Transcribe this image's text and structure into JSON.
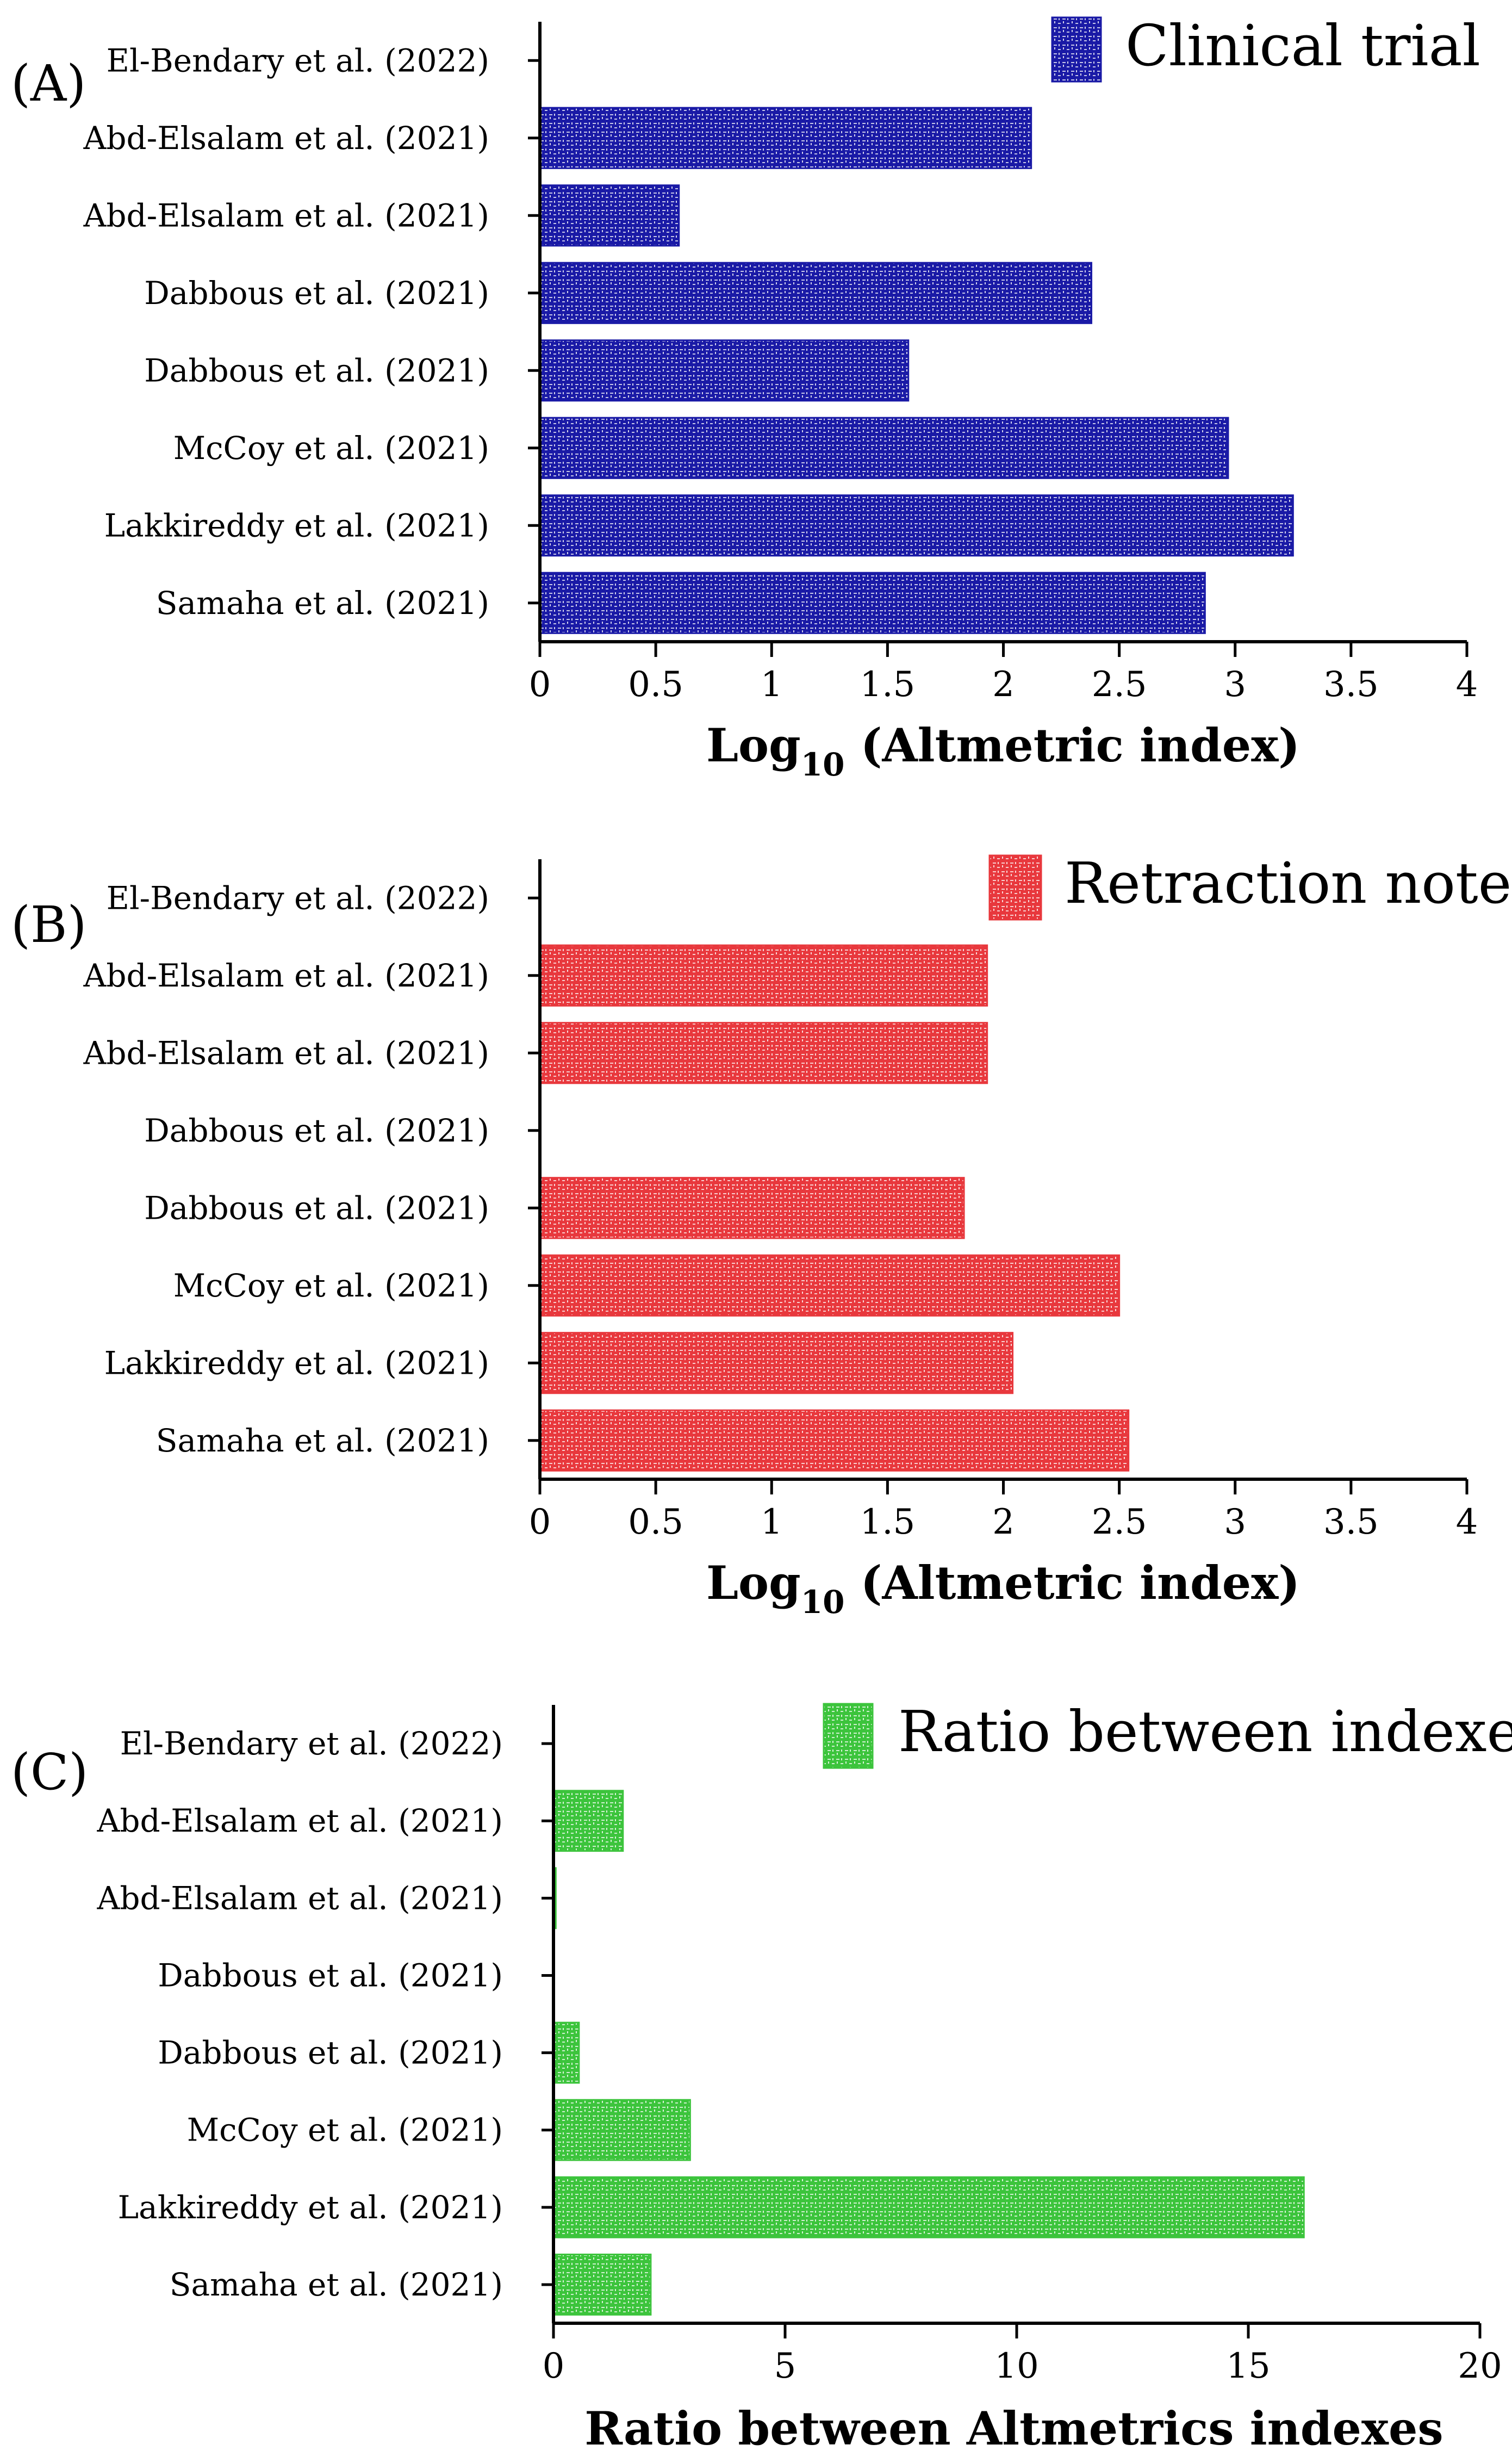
{
  "chart_data": [
    {
      "panel_label": "(A)",
      "type": "bar",
      "orientation": "horizontal",
      "legend": "Clinical trial",
      "legend_position": "top-right",
      "color": "#1a1aa6",
      "categories": [
        "El-Bendary et al. (2022)",
        "Abd-Elsalam et al. (2021)",
        "Abd-Elsalam et al. (2021)",
        "Dabbous et al. (2021)",
        "Dabbous et al. (2021)",
        "McCoy et al. (2021)",
        "Lakkireddy et al. (2021)",
        "Samaha et al. (2021)"
      ],
      "values": [
        0,
        2.12,
        0.6,
        2.38,
        1.59,
        2.97,
        3.25,
        2.87
      ],
      "xlabel_main": "Log",
      "xlabel_sub": "10",
      "xlabel_rest": " (Altmetric index)",
      "xlim": [
        0,
        4
      ],
      "xticks": [
        0,
        0.5,
        1,
        1.5,
        2,
        2.5,
        3,
        3.5,
        4
      ],
      "xtick_labels": [
        "0",
        "0.5",
        "1",
        "1.5",
        "2",
        "2.5",
        "3",
        "3.5",
        "4"
      ]
    },
    {
      "panel_label": "(B)",
      "type": "bar",
      "orientation": "horizontal",
      "legend": "Retraction note",
      "legend_position": "top-right",
      "color": "#e8383d",
      "categories": [
        "El-Bendary et al. (2022)",
        "Abd-Elsalam et al. (2021)",
        "Abd-Elsalam et al. (2021)",
        "Dabbous et al. (2021)",
        "Dabbous et al. (2021)",
        "McCoy et al. (2021)",
        "Lakkireddy et al. (2021)",
        "Samaha et al. (2021)"
      ],
      "values": [
        0,
        1.93,
        1.93,
        0,
        1.83,
        2.5,
        2.04,
        2.54
      ],
      "xlabel_main": "Log",
      "xlabel_sub": "10",
      "xlabel_rest": " (Altmetric index)",
      "xlim": [
        0,
        4
      ],
      "xticks": [
        0,
        0.5,
        1,
        1.5,
        2,
        2.5,
        3,
        3.5,
        4
      ],
      "xtick_labels": [
        "0",
        "0.5",
        "1",
        "1.5",
        "2",
        "2.5",
        "3",
        "3.5",
        "4"
      ]
    },
    {
      "panel_label": "(C)",
      "type": "bar",
      "orientation": "horizontal",
      "legend": "Ratio between indexes",
      "legend_position": "top-right",
      "color": "#3cc43c",
      "categories": [
        "El-Bendary et al. (2022)",
        "Abd-Elsalam et al. (2021)",
        "Abd-Elsalam et al. (2021)",
        "Dabbous et al. (2021)",
        "Dabbous et al. (2021)",
        "McCoy et al. (2021)",
        "Lakkireddy et al. (2021)",
        "Samaha et al. (2021)"
      ],
      "values": [
        0,
        1.5,
        0.05,
        0,
        0.55,
        2.95,
        16.2,
        2.1
      ],
      "xlabel_main": "Ratio between Altmetrics indexes",
      "xlabel_sub": "",
      "xlabel_rest": "",
      "xlim": [
        0,
        20
      ],
      "xticks": [
        0,
        5,
        10,
        15,
        20
      ],
      "xtick_labels": [
        "0",
        "5",
        "10",
        "15",
        "20"
      ]
    }
  ]
}
